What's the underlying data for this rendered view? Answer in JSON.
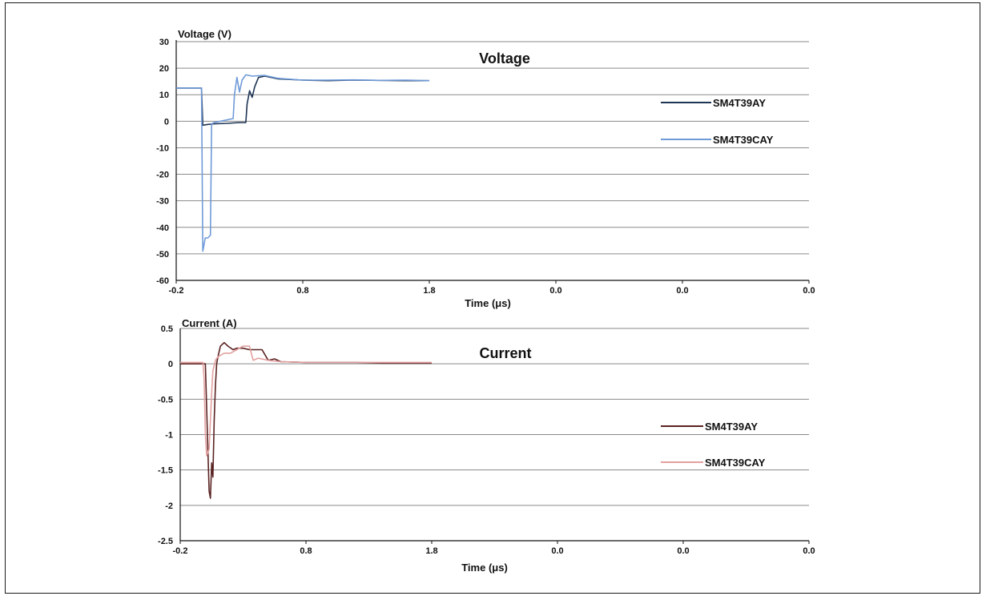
{
  "chart_data": [
    {
      "type": "line",
      "title": "Voltage",
      "ylabel": "Voltage (V)",
      "xlabel": "Time (μs)",
      "ylim": [
        -60,
        30
      ],
      "yticks": [
        30,
        20,
        10,
        0,
        -10,
        -20,
        -30,
        -40,
        -50,
        -60
      ],
      "xtick_labels": [
        "-0.2",
        "0.8",
        "1.8",
        "0.0",
        "0.0",
        "0.0"
      ],
      "grid": true,
      "legend": "right",
      "series": [
        {
          "name": "SM4T39AY",
          "color": "#1f3554",
          "x": [
            -0.2,
            0.0,
            0.01,
            0.05,
            0.1,
            0.2,
            0.3,
            0.35,
            0.36,
            0.38,
            0.4,
            0.42,
            0.45,
            0.5,
            0.6,
            0.8,
            1.0,
            1.2,
            1.4,
            1.6,
            1.8
          ],
          "y": [
            12.5,
            12.5,
            -1.5,
            -1.2,
            -1.0,
            -0.8,
            -0.5,
            -0.5,
            6.5,
            11.5,
            9.0,
            13.0,
            16.5,
            17.0,
            16.0,
            15.5,
            15.3,
            15.5,
            15.4,
            15.3,
            15.3
          ]
        },
        {
          "name": "SM4T39CAY",
          "color": "#6f9ad8",
          "x": [
            -0.2,
            0.0,
            0.01,
            0.03,
            0.05,
            0.07,
            0.08,
            0.1,
            0.15,
            0.2,
            0.25,
            0.26,
            0.28,
            0.3,
            0.32,
            0.35,
            0.4,
            0.5,
            0.6,
            0.8,
            1.0,
            1.2,
            1.4,
            1.6,
            1.8
          ],
          "y": [
            12.5,
            12.5,
            -49.0,
            -44.0,
            -44.0,
            -43.0,
            -1.0,
            -0.5,
            0.0,
            0.5,
            1.0,
            10.0,
            16.5,
            11.0,
            15.5,
            17.5,
            17.0,
            17.3,
            16.2,
            15.5,
            15.5,
            15.6,
            15.4,
            15.5,
            15.3
          ]
        }
      ]
    },
    {
      "type": "line",
      "title": "Current",
      "ylabel": "Current (A)",
      "xlabel": "Time (μs)",
      "ylim": [
        -2.5,
        0.5
      ],
      "yticks": [
        0.5,
        0,
        -0.5,
        -1,
        -1.5,
        -2,
        -2.5
      ],
      "xtick_labels": [
        "-0.2",
        "0.8",
        "1.8",
        "0.0",
        "0.0",
        "0.0"
      ],
      "grid": true,
      "legend": "right",
      "series": [
        {
          "name": "SM4T39AY",
          "color": "#5a2222",
          "x": [
            -0.2,
            0.0,
            0.02,
            0.03,
            0.04,
            0.05,
            0.06,
            0.07,
            0.08,
            0.09,
            0.1,
            0.12,
            0.15,
            0.18,
            0.22,
            0.25,
            0.3,
            0.35,
            0.4,
            0.45,
            0.5,
            0.55,
            0.6,
            0.8,
            1.0,
            1.2,
            1.4,
            1.6,
            1.8
          ],
          "y": [
            0.0,
            0.0,
            -1.2,
            -1.8,
            -1.9,
            -1.4,
            -1.6,
            -0.8,
            -0.3,
            0.0,
            0.1,
            0.25,
            0.3,
            0.25,
            0.2,
            0.22,
            0.22,
            0.2,
            0.2,
            0.2,
            0.05,
            0.07,
            0.03,
            0.02,
            0.02,
            0.02,
            0.01,
            0.01,
            0.01
          ]
        },
        {
          "name": "SM4T39CAY",
          "color": "#e3a0a0",
          "x": [
            -0.2,
            -0.02,
            -0.01,
            0.0,
            0.01,
            0.03,
            0.05,
            0.06,
            0.08,
            0.1,
            0.15,
            0.2,
            0.25,
            0.3,
            0.35,
            0.38,
            0.42,
            0.5,
            0.6,
            0.8,
            1.0,
            1.2,
            1.4,
            1.6,
            1.8
          ],
          "y": [
            0.02,
            0.02,
            -0.2,
            -1.0,
            -1.3,
            -1.2,
            -0.4,
            -0.1,
            0.05,
            0.1,
            0.15,
            0.15,
            0.2,
            0.25,
            0.25,
            0.05,
            0.08,
            0.05,
            0.03,
            0.02,
            0.02,
            0.02,
            0.02,
            0.02,
            0.02
          ]
        }
      ]
    }
  ]
}
